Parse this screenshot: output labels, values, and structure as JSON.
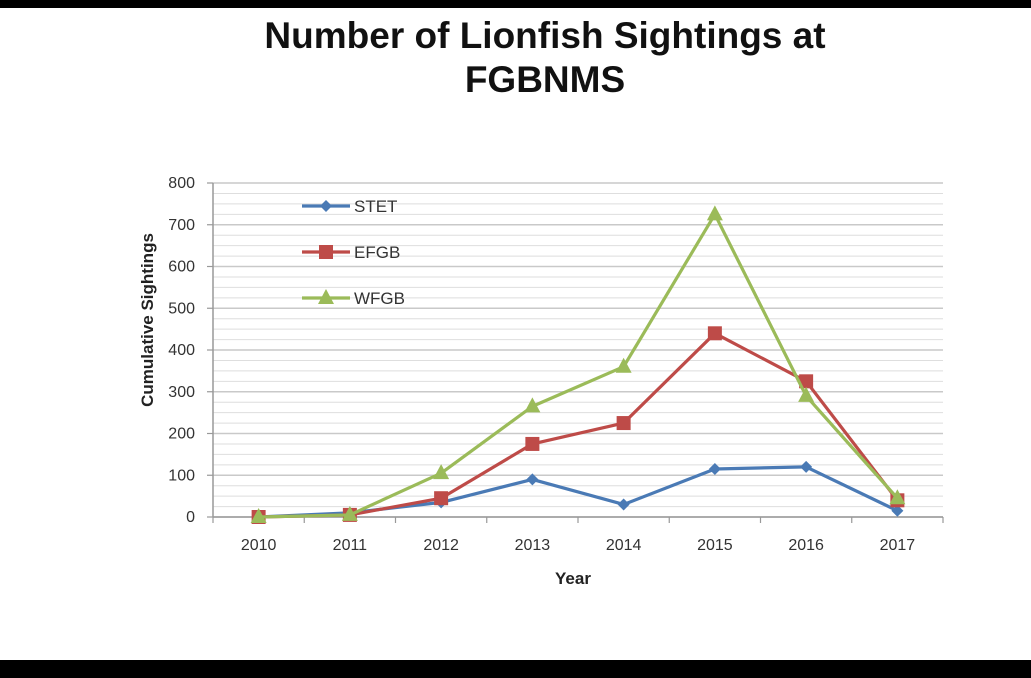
{
  "chart_data": {
    "type": "line",
    "title_line1": "Number of Lionfish Sightings at",
    "title_line2": "FGBNMS",
    "xlabel": "Year",
    "ylabel": "Cumulative Sightings",
    "categories": [
      "2010",
      "2011",
      "2012",
      "2013",
      "2014",
      "2015",
      "2016",
      "2017"
    ],
    "ylim": [
      0,
      800
    ],
    "yticks": [
      0,
      100,
      200,
      300,
      400,
      500,
      600,
      700,
      800
    ],
    "ytick_labels": [
      "0",
      "100",
      "200",
      "300",
      "400",
      "500",
      "600",
      "700",
      "800"
    ],
    "grid": true,
    "legend_position": "top-left",
    "series": [
      {
        "name": "STET",
        "color": "#4a7ab5",
        "marker": "diamond",
        "values": [
          0,
          10,
          35,
          90,
          30,
          115,
          120,
          15
        ]
      },
      {
        "name": "EFGB",
        "color": "#be4b48",
        "marker": "square",
        "values": [
          0,
          5,
          45,
          175,
          225,
          440,
          325,
          40
        ]
      },
      {
        "name": "WFGB",
        "color": "#9bbb59",
        "marker": "triangle",
        "values": [
          0,
          5,
          105,
          265,
          360,
          725,
          290,
          45
        ]
      }
    ]
  }
}
